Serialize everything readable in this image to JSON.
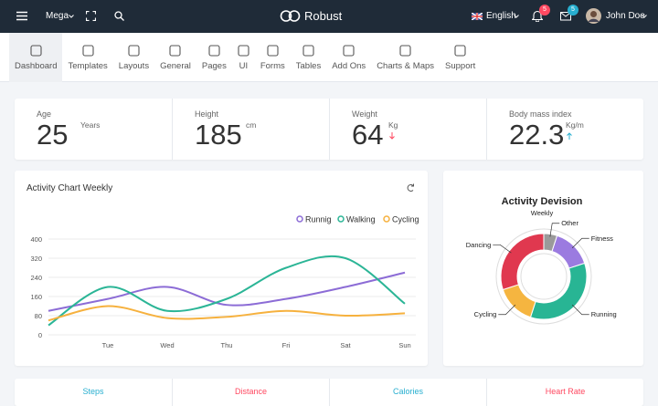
{
  "header": {
    "menu": "Mega",
    "brand": "Robust",
    "language": "English",
    "notifications": 5,
    "messages": 5,
    "user": "John Doe"
  },
  "nav": [
    "Dashboard",
    "Templates",
    "Layouts",
    "General",
    "Pages",
    "UI",
    "Forms",
    "Tables",
    "Add Ons",
    "Charts & Maps",
    "Support"
  ],
  "stats": [
    {
      "label": "Age",
      "value": 25,
      "unit": "Years"
    },
    {
      "label": "Height",
      "value": 185,
      "unit": "cm"
    },
    {
      "label": "Weight",
      "value": 64,
      "unit": "Kg"
    },
    {
      "label": "Body mass index",
      "value": 22.3,
      "unit": "Kg/m"
    }
  ],
  "chart_data": [
    {
      "type": "line",
      "title": "Activity Chart Weekly",
      "categories": [
        null,
        "Tue",
        "Wed",
        "Thu",
        "Fri",
        "Sat",
        "Sun"
      ],
      "series": [
        {
          "name": "Runnig",
          "color": "#8c6cd6",
          "values": [
            100,
            150,
            200,
            125,
            150,
            200,
            260
          ]
        },
        {
          "name": "Walking",
          "color": "#2bb596",
          "values": [
            40,
            200,
            100,
            150,
            280,
            320,
            130
          ]
        },
        {
          "name": "Cycling",
          "color": "#f6b13e",
          "values": [
            60,
            120,
            70,
            75,
            100,
            80,
            90
          ]
        }
      ],
      "ylim": [
        0,
        400
      ],
      "yticks": [
        0,
        80,
        160,
        240,
        320,
        400
      ],
      "grid": true
    },
    {
      "type": "pie",
      "title": "Activity Devision",
      "subtitle": "Weekly",
      "categories": [
        "Fitness",
        "Running",
        "Cycling",
        "Dancing",
        "Other"
      ],
      "values": [
        15,
        35,
        15,
        30,
        5
      ],
      "colors": [
        "#9b7be0",
        "#28b594",
        "#f5b540",
        "#e0384f",
        "#9a9a9a"
      ]
    }
  ],
  "summary": [
    "Steps",
    "Distance",
    "Calories",
    "Heart Rate"
  ]
}
